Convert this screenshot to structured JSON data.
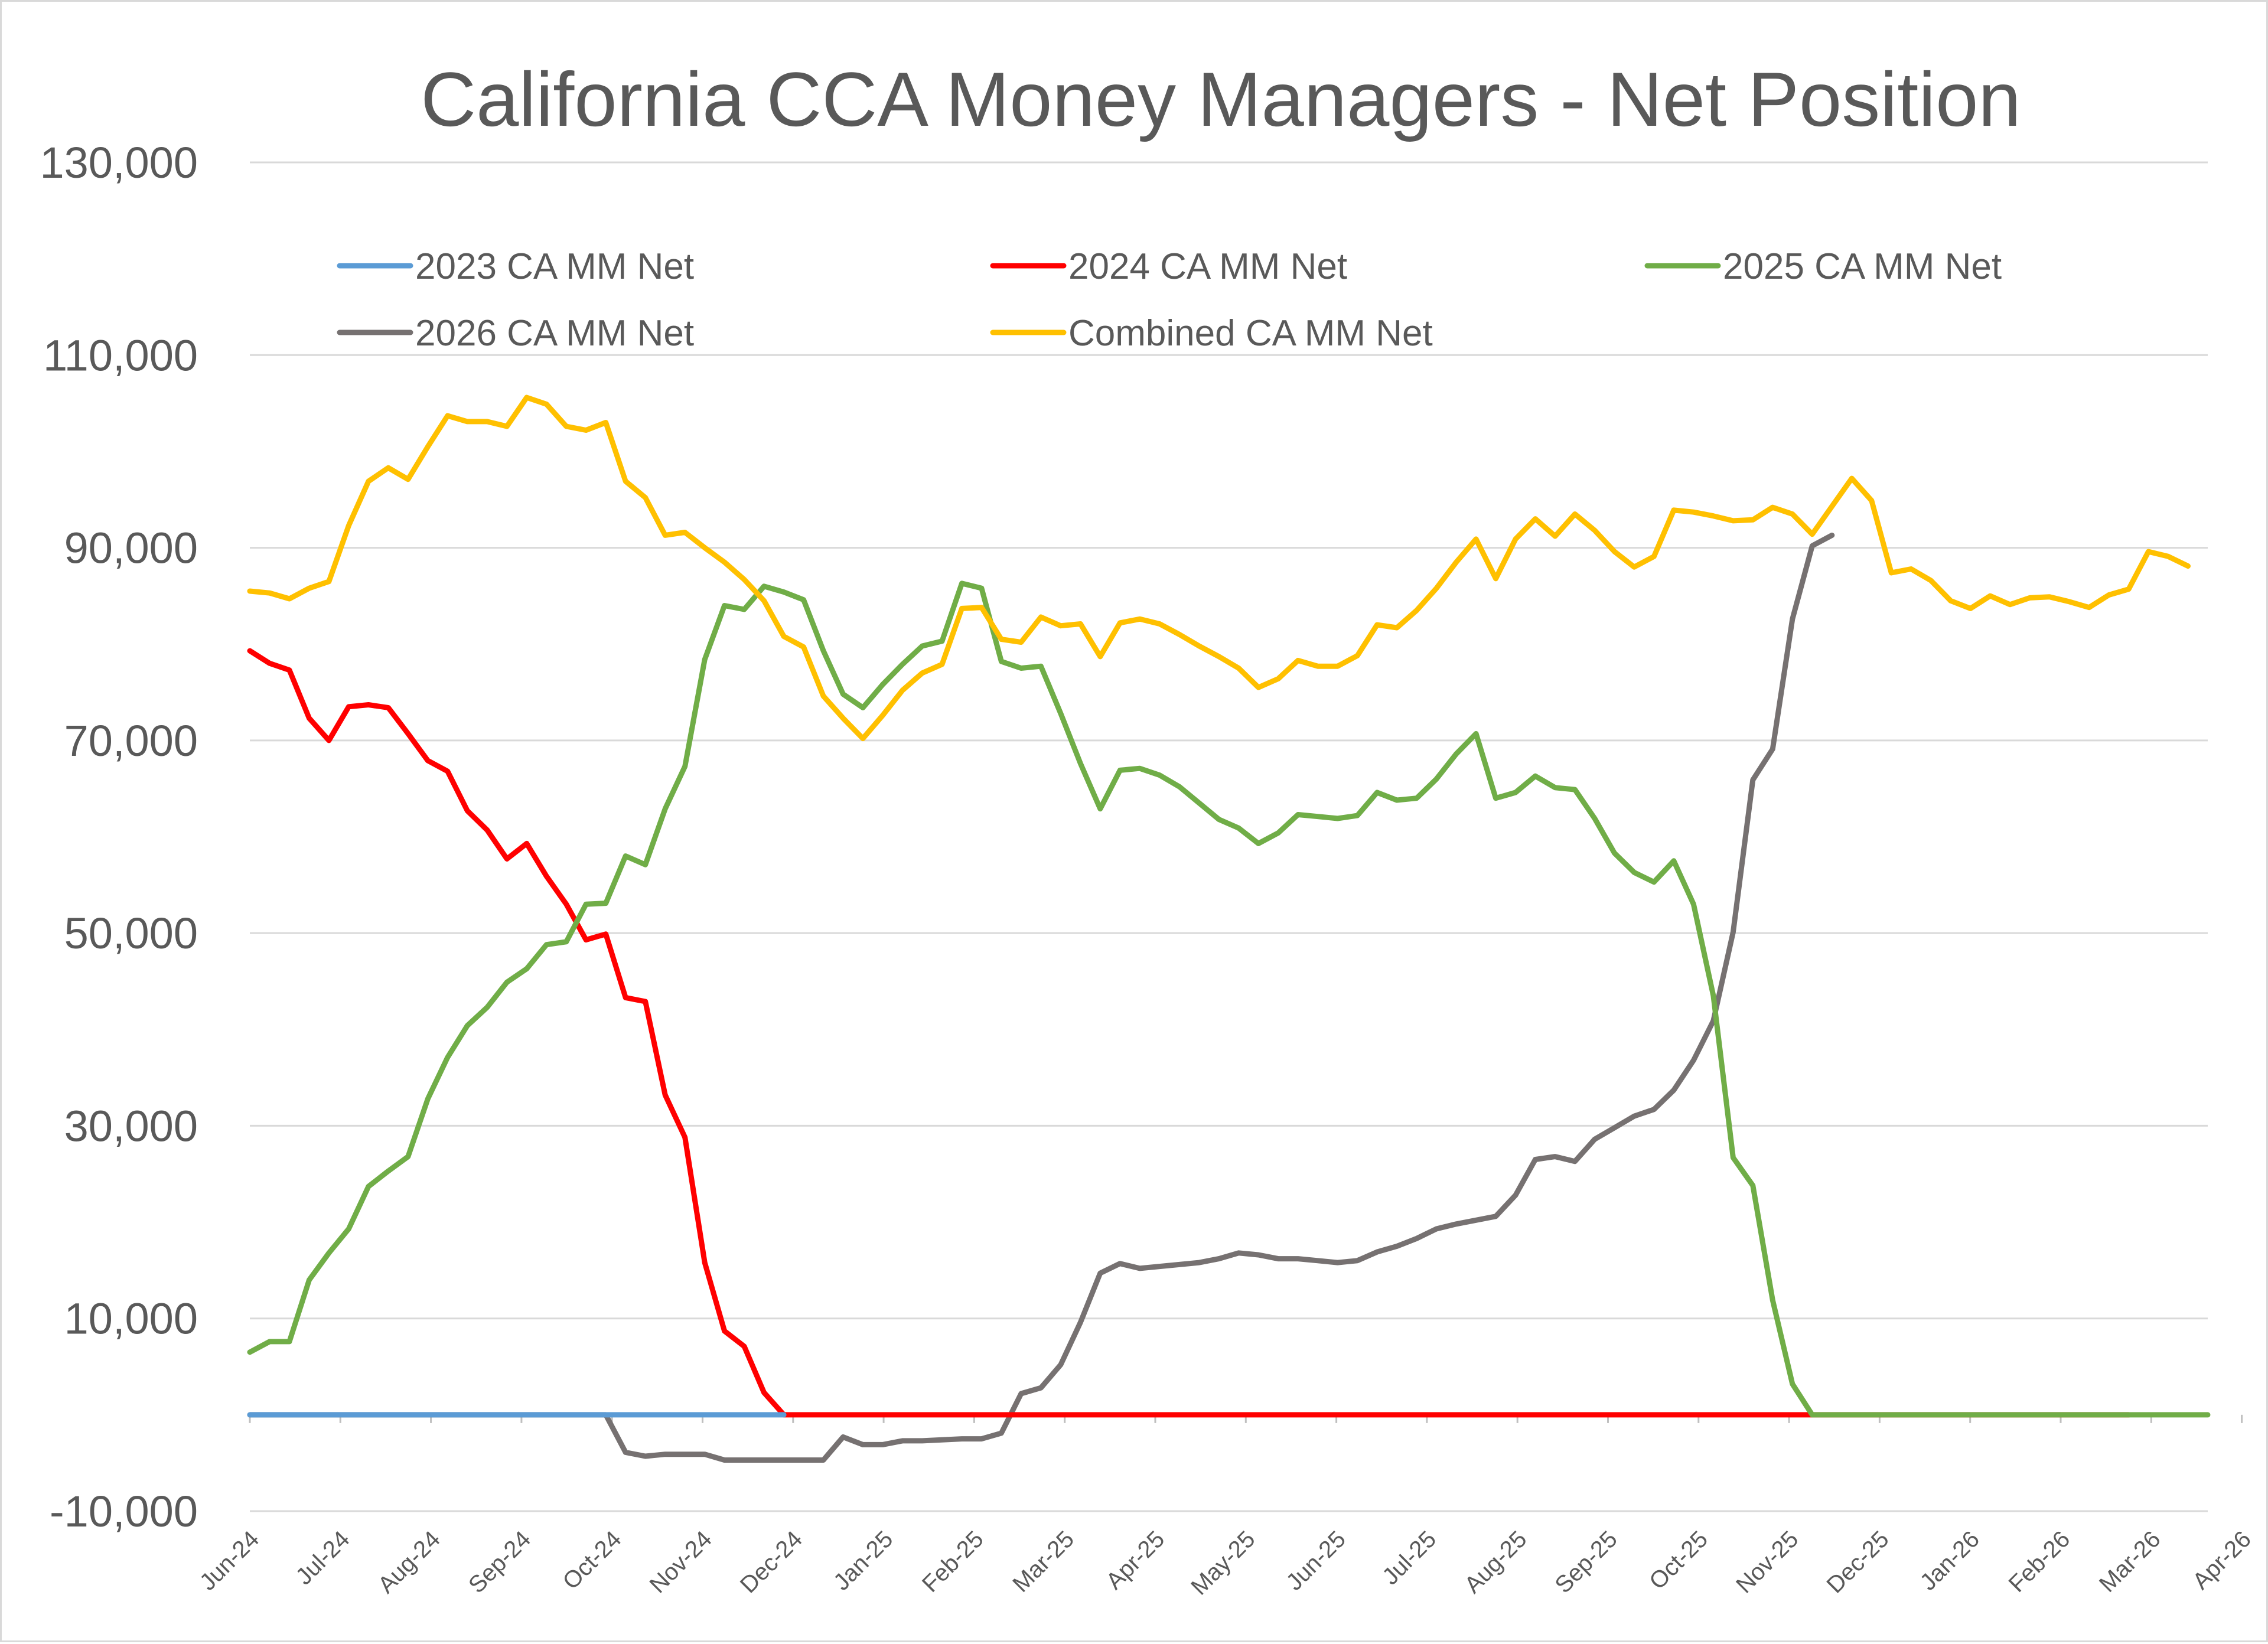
{
  "chart_data": {
    "type": "line",
    "title": "California CCA Money Managers - Net Position",
    "xlabel": "",
    "ylabel": "",
    "ylim": [
      -10000,
      130000
    ],
    "y_ticks": [
      "130,000",
      "110,000",
      "90,000",
      "70,000",
      "50,000",
      "30,000",
      "10,000",
      "-10,000"
    ],
    "y_tick_values": [
      130000,
      110000,
      90000,
      70000,
      50000,
      30000,
      10000,
      -10000
    ],
    "x_ticks": [
      "Jun-24",
      "Jul-24",
      "Aug-24",
      "Sep-24",
      "Oct-24",
      "Nov-24",
      "Dec-24",
      "Jan-25",
      "Feb-25",
      "Mar-25",
      "Apr-25",
      "May-25",
      "Jun-25",
      "Jul-25",
      "Aug-25",
      "Sep-25",
      "Oct-25",
      "Nov-25",
      "Dec-25",
      "Jan-26",
      "Feb-26",
      "Mar-26",
      "Apr-26"
    ],
    "x_range_weeks": [
      0,
      99
    ],
    "grid": true,
    "legend_position": "top",
    "series": [
      {
        "name": "2023 CA MM Net",
        "color": "#5B9BD5",
        "points": [
          [
            0,
            0
          ],
          [
            27,
            0
          ]
        ]
      },
      {
        "name": "2024 CA MM Net",
        "color": "#FF0000",
        "points": [
          [
            0,
            79300
          ],
          [
            1,
            78000
          ],
          [
            2,
            77300
          ],
          [
            3,
            72300
          ],
          [
            4,
            70000
          ],
          [
            5,
            73500
          ],
          [
            6,
            73700
          ],
          [
            7,
            73400
          ],
          [
            8,
            70700
          ],
          [
            9,
            67900
          ],
          [
            10,
            66800
          ],
          [
            11,
            62700
          ],
          [
            12,
            60700
          ],
          [
            13,
            57700
          ],
          [
            14,
            59300
          ],
          [
            15,
            55900
          ],
          [
            16,
            53000
          ],
          [
            17,
            49300
          ],
          [
            18,
            49900
          ],
          [
            19,
            43300
          ],
          [
            20,
            42900
          ],
          [
            21,
            33200
          ],
          [
            22,
            28800
          ],
          [
            23,
            15800
          ],
          [
            24,
            8700
          ],
          [
            25,
            7100
          ],
          [
            26,
            2300
          ],
          [
            27,
            0
          ],
          [
            40,
            0
          ],
          [
            60,
            0
          ],
          [
            80,
            0
          ],
          [
            95,
            0
          ]
        ]
      },
      {
        "name": "2025 CA MM Net",
        "color": "#70AD47",
        "points": [
          [
            0,
            6500
          ],
          [
            1,
            7600
          ],
          [
            2,
            7600
          ],
          [
            3,
            14000
          ],
          [
            4,
            16800
          ],
          [
            5,
            19300
          ],
          [
            6,
            23700
          ],
          [
            7,
            25300
          ],
          [
            8,
            26800
          ],
          [
            9,
            32800
          ],
          [
            10,
            37100
          ],
          [
            11,
            40400
          ],
          [
            12,
            42300
          ],
          [
            13,
            44900
          ],
          [
            14,
            46300
          ],
          [
            15,
            48800
          ],
          [
            16,
            49100
          ],
          [
            17,
            53000
          ],
          [
            18,
            53100
          ],
          [
            19,
            58000
          ],
          [
            20,
            57100
          ],
          [
            21,
            62900
          ],
          [
            22,
            67300
          ],
          [
            23,
            78400
          ],
          [
            24,
            84000
          ],
          [
            25,
            83600
          ],
          [
            26,
            86000
          ],
          [
            27,
            85400
          ],
          [
            28,
            84600
          ],
          [
            29,
            79300
          ],
          [
            30,
            74800
          ],
          [
            31,
            73400
          ],
          [
            32,
            75800
          ],
          [
            33,
            77900
          ],
          [
            34,
            79800
          ],
          [
            35,
            80300
          ],
          [
            36,
            86300
          ],
          [
            37,
            85800
          ],
          [
            38,
            78200
          ],
          [
            39,
            77500
          ],
          [
            40,
            77700
          ],
          [
            41,
            72800
          ],
          [
            42,
            67600
          ],
          [
            43,
            62900
          ],
          [
            44,
            66900
          ],
          [
            45,
            67100
          ],
          [
            46,
            66400
          ],
          [
            47,
            65200
          ],
          [
            48,
            63500
          ],
          [
            49,
            61800
          ],
          [
            50,
            60900
          ],
          [
            51,
            59300
          ],
          [
            52,
            60400
          ],
          [
            53,
            62300
          ],
          [
            54,
            62100
          ],
          [
            55,
            61900
          ],
          [
            56,
            62200
          ],
          [
            57,
            64600
          ],
          [
            58,
            63800
          ],
          [
            59,
            64000
          ],
          [
            60,
            66000
          ],
          [
            61,
            68600
          ],
          [
            62,
            70700
          ],
          [
            63,
            64000
          ],
          [
            64,
            64600
          ],
          [
            65,
            66300
          ],
          [
            66,
            65100
          ],
          [
            67,
            64900
          ],
          [
            68,
            61900
          ],
          [
            69,
            58300
          ],
          [
            70,
            56300
          ],
          [
            71,
            55300
          ],
          [
            72,
            57500
          ],
          [
            73,
            53000
          ],
          [
            74,
            43500
          ],
          [
            75,
            26700
          ],
          [
            76,
            23800
          ],
          [
            77,
            11900
          ],
          [
            78,
            3200
          ],
          [
            79,
            0
          ],
          [
            90,
            0
          ],
          [
            99,
            0
          ]
        ]
      },
      {
        "name": "2026 CA MM Net",
        "color": "#767171",
        "points": [
          [
            0,
            0
          ],
          [
            18,
            0
          ],
          [
            19,
            -3900
          ],
          [
            20,
            -4300
          ],
          [
            21,
            -4100
          ],
          [
            22,
            -4100
          ],
          [
            23,
            -4100
          ],
          [
            24,
            -4700
          ],
          [
            25,
            -4700
          ],
          [
            26,
            -4700
          ],
          [
            27,
            -4700
          ],
          [
            28,
            -4700
          ],
          [
            29,
            -4700
          ],
          [
            30,
            -2300
          ],
          [
            31,
            -3100
          ],
          [
            32,
            -3100
          ],
          [
            33,
            -2700
          ],
          [
            34,
            -2700
          ],
          [
            35,
            -2600
          ],
          [
            36,
            -2500
          ],
          [
            37,
            -2500
          ],
          [
            38,
            -1900
          ],
          [
            39,
            2200
          ],
          [
            40,
            2800
          ],
          [
            41,
            5200
          ],
          [
            42,
            9600
          ],
          [
            43,
            14700
          ],
          [
            44,
            15700
          ],
          [
            45,
            15200
          ],
          [
            46,
            15400
          ],
          [
            47,
            15600
          ],
          [
            48,
            15800
          ],
          [
            49,
            16200
          ],
          [
            50,
            16800
          ],
          [
            51,
            16600
          ],
          [
            52,
            16200
          ],
          [
            53,
            16200
          ],
          [
            54,
            16000
          ],
          [
            55,
            15800
          ],
          [
            56,
            16000
          ],
          [
            57,
            16900
          ],
          [
            58,
            17500
          ],
          [
            59,
            18300
          ],
          [
            60,
            19300
          ],
          [
            61,
            19800
          ],
          [
            62,
            20200
          ],
          [
            63,
            20600
          ],
          [
            64,
            22800
          ],
          [
            65,
            26500
          ],
          [
            66,
            26800
          ],
          [
            67,
            26300
          ],
          [
            68,
            28600
          ],
          [
            69,
            29800
          ],
          [
            70,
            31000
          ],
          [
            71,
            31700
          ],
          [
            72,
            33700
          ],
          [
            73,
            36800
          ],
          [
            74,
            40900
          ],
          [
            75,
            50100
          ],
          [
            76,
            65900
          ],
          [
            77,
            69100
          ],
          [
            78,
            82600
          ],
          [
            79,
            90200
          ],
          [
            80,
            91300
          ]
        ]
      },
      {
        "name": "Combined CA MM Net",
        "color": "#FFC000",
        "points": [
          [
            0,
            85500
          ],
          [
            1,
            85300
          ],
          [
            2,
            84700
          ],
          [
            3,
            85800
          ],
          [
            4,
            86500
          ],
          [
            5,
            92300
          ],
          [
            6,
            96900
          ],
          [
            7,
            98300
          ],
          [
            8,
            97100
          ],
          [
            9,
            100500
          ],
          [
            10,
            103700
          ],
          [
            11,
            103100
          ],
          [
            12,
            103100
          ],
          [
            13,
            102600
          ],
          [
            14,
            105600
          ],
          [
            15,
            104900
          ],
          [
            16,
            102600
          ],
          [
            17,
            102200
          ],
          [
            18,
            103000
          ],
          [
            19,
            96900
          ],
          [
            20,
            95200
          ],
          [
            21,
            91300
          ],
          [
            22,
            91600
          ],
          [
            23,
            90000
          ],
          [
            24,
            88500
          ],
          [
            25,
            86700
          ],
          [
            26,
            84500
          ],
          [
            27,
            80800
          ],
          [
            28,
            79700
          ],
          [
            29,
            74600
          ],
          [
            30,
            72300
          ],
          [
            31,
            70200
          ],
          [
            32,
            72600
          ],
          [
            33,
            75200
          ],
          [
            34,
            77000
          ],
          [
            35,
            77900
          ],
          [
            36,
            83700
          ],
          [
            37,
            83800
          ],
          [
            38,
            80500
          ],
          [
            39,
            80200
          ],
          [
            40,
            82800
          ],
          [
            41,
            81900
          ],
          [
            42,
            82100
          ],
          [
            43,
            78700
          ],
          [
            44,
            82200
          ],
          [
            45,
            82600
          ],
          [
            46,
            82100
          ],
          [
            47,
            81000
          ],
          [
            48,
            79800
          ],
          [
            49,
            78700
          ],
          [
            50,
            77500
          ],
          [
            51,
            75500
          ],
          [
            52,
            76400
          ],
          [
            53,
            78300
          ],
          [
            54,
            77700
          ],
          [
            55,
            77700
          ],
          [
            56,
            78800
          ],
          [
            57,
            82000
          ],
          [
            58,
            81700
          ],
          [
            59,
            83500
          ],
          [
            60,
            85800
          ],
          [
            61,
            88500
          ],
          [
            62,
            90900
          ],
          [
            63,
            86800
          ],
          [
            64,
            90900
          ],
          [
            65,
            93000
          ],
          [
            66,
            91200
          ],
          [
            67,
            93500
          ],
          [
            68,
            91800
          ],
          [
            69,
            89600
          ],
          [
            70,
            88000
          ],
          [
            71,
            89100
          ],
          [
            72,
            93900
          ],
          [
            73,
            93700
          ],
          [
            74,
            93300
          ],
          [
            75,
            92800
          ],
          [
            76,
            92900
          ],
          [
            77,
            94200
          ],
          [
            78,
            93500
          ],
          [
            79,
            91400
          ],
          [
            80,
            94300
          ],
          [
            81,
            97200
          ],
          [
            82,
            94900
          ],
          [
            83,
            87400
          ],
          [
            84,
            87800
          ],
          [
            85,
            86600
          ],
          [
            86,
            84500
          ],
          [
            87,
            83700
          ],
          [
            88,
            85000
          ],
          [
            89,
            84100
          ],
          [
            90,
            84800
          ],
          [
            91,
            84900
          ],
          [
            92,
            84400
          ],
          [
            93,
            83800
          ],
          [
            94,
            85100
          ],
          [
            95,
            85700
          ],
          [
            96,
            89600
          ],
          [
            97,
            89100
          ],
          [
            98,
            88100
          ]
        ]
      }
    ]
  }
}
